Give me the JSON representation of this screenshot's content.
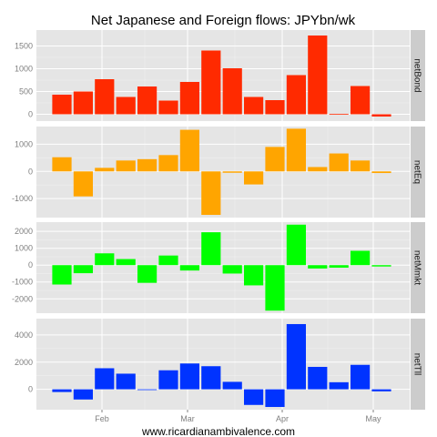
{
  "chart_data": {
    "type": "bar",
    "title": "Net Japanese and Foreign flows: JPYbn/wk",
    "caption": "www.ricardianambivalence.com",
    "x_ticks": [
      "Feb",
      "Mar",
      "Apr",
      "May"
    ],
    "grid": true,
    "facet_position": "right",
    "panels": [
      {
        "name": "netBond",
        "color": "#ff2a00",
        "ylim": [
          -150,
          1850
        ],
        "y_ticks": [
          0,
          500,
          1000,
          1500
        ],
        "y_tick_labels": [
          "0",
          "500",
          "1000",
          "1500"
        ],
        "values": [
          430,
          500,
          770,
          380,
          610,
          300,
          710,
          1400,
          1010,
          380,
          310,
          860,
          1730,
          10,
          620,
          -50
        ]
      },
      {
        "name": "netEq",
        "color": "#ffa500",
        "ylim": [
          -1700,
          1650
        ],
        "y_ticks": [
          -1000,
          0,
          1000
        ],
        "y_tick_labels": [
          "-1000",
          "0",
          "1000"
        ],
        "values": [
          520,
          -920,
          130,
          400,
          450,
          600,
          1530,
          -1600,
          -50,
          -480,
          900,
          1570,
          160,
          660,
          400,
          -60
        ]
      },
      {
        "name": "netMmkt",
        "color": "#00ff00",
        "ylim": [
          -2850,
          2550
        ],
        "y_ticks": [
          -2000,
          -1000,
          0,
          1000,
          2000
        ],
        "y_tick_labels": [
          "-2000",
          "-1000",
          "0",
          "1000",
          "2000"
        ],
        "values": [
          -1150,
          -480,
          700,
          360,
          -1050,
          570,
          -320,
          1950,
          -500,
          -1200,
          -2700,
          2400,
          -200,
          -150,
          850,
          -80
        ]
      },
      {
        "name": "netTll",
        "color": "#0033ff",
        "ylim": [
          -1500,
          5200
        ],
        "y_ticks": [
          0,
          2000,
          4000
        ],
        "y_tick_labels": [
          "0",
          "2000",
          "4000"
        ],
        "values": [
          -200,
          -750,
          1550,
          1150,
          -30,
          1400,
          1900,
          1700,
          550,
          -1150,
          -1300,
          4800,
          1650,
          520,
          1800,
          -150
        ]
      }
    ]
  }
}
